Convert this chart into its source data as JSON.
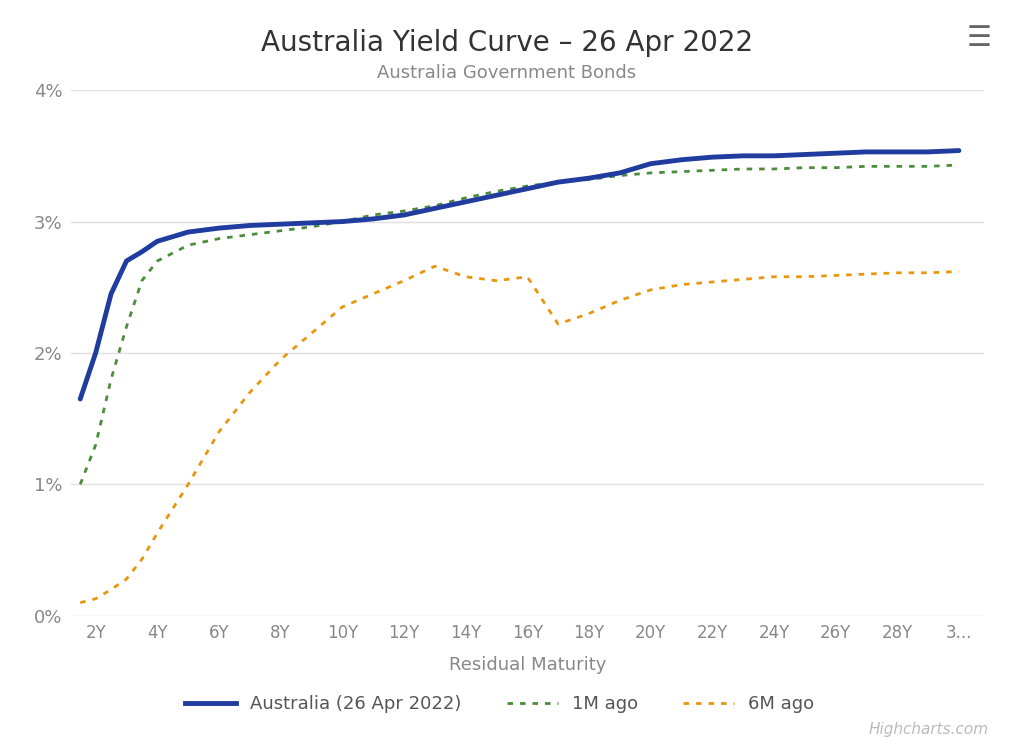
{
  "title": "Australia Yield Curve – 26 Apr 2022",
  "subtitle": "Australia Government Bonds",
  "xlabel": "Residual Maturity",
  "background_color": "#ffffff",
  "plot_bg_color": "#ffffff",
  "grid_color": "#e0e0e0",
  "title_color": "#333333",
  "subtitle_color": "#888888",
  "xlabel_color": "#888888",
  "x_ticks": [
    2,
    4,
    6,
    8,
    10,
    12,
    14,
    16,
    18,
    20,
    22,
    24,
    26,
    28,
    30
  ],
  "x_tick_labels": [
    "2Y",
    "4Y",
    "6Y",
    "8Y",
    "10Y",
    "12Y",
    "14Y",
    "16Y",
    "18Y",
    "20Y",
    "22Y",
    "24Y",
    "26Y",
    "28Y",
    "3..."
  ],
  "xlim": [
    1.2,
    30.8
  ],
  "ylim": [
    0.0,
    0.04
  ],
  "y_ticks": [
    0.0,
    0.01,
    0.02,
    0.03,
    0.04
  ],
  "y_tick_labels": [
    "0%",
    "1%",
    "2%",
    "3%",
    "4%"
  ],
  "series": {
    "today": {
      "label": "Australia (26 Apr 2022)",
      "color": "#1f3c9e",
      "linewidth": 3.5,
      "x": [
        1.5,
        2.0,
        2.5,
        3.0,
        3.5,
        4.0,
        5.0,
        6.0,
        7.0,
        8.0,
        9.0,
        10.0,
        11.0,
        12.0,
        13.0,
        14.0,
        15.0,
        16.0,
        17.0,
        18.0,
        19.0,
        20.0,
        21.0,
        22.0,
        23.0,
        24.0,
        25.0,
        26.0,
        27.0,
        28.0,
        29.0,
        30.0
      ],
      "y": [
        0.0165,
        0.02,
        0.0245,
        0.027,
        0.0277,
        0.0285,
        0.0292,
        0.0295,
        0.0297,
        0.0298,
        0.0299,
        0.03,
        0.0302,
        0.0305,
        0.031,
        0.0315,
        0.032,
        0.0325,
        0.033,
        0.0333,
        0.0337,
        0.0344,
        0.0347,
        0.0349,
        0.035,
        0.035,
        0.0351,
        0.0352,
        0.0353,
        0.0353,
        0.0353,
        0.0354
      ]
    },
    "1m_ago": {
      "label": "1M ago",
      "color": "#4c8c3c",
      "linewidth": 2.0,
      "x": [
        1.5,
        2.0,
        2.5,
        3.0,
        3.5,
        4.0,
        5.0,
        6.0,
        7.0,
        8.0,
        9.0,
        10.0,
        11.0,
        12.0,
        13.0,
        14.0,
        15.0,
        16.0,
        17.0,
        18.0,
        19.0,
        20.0,
        21.0,
        22.0,
        23.0,
        24.0,
        25.0,
        26.0,
        27.0,
        28.0,
        29.0,
        30.0
      ],
      "y": [
        0.01,
        0.013,
        0.018,
        0.022,
        0.0255,
        0.027,
        0.0282,
        0.0287,
        0.029,
        0.0293,
        0.0296,
        0.03,
        0.0305,
        0.0308,
        0.0312,
        0.0318,
        0.0323,
        0.0327,
        0.033,
        0.0332,
        0.0335,
        0.0337,
        0.0338,
        0.0339,
        0.034,
        0.034,
        0.0341,
        0.0341,
        0.0342,
        0.0342,
        0.0342,
        0.0343
      ]
    },
    "6m_ago": {
      "label": "6M ago",
      "color": "#e8960e",
      "linewidth": 2.0,
      "x": [
        1.5,
        2.0,
        2.5,
        3.0,
        3.5,
        4.0,
        5.0,
        6.0,
        7.0,
        8.0,
        9.0,
        10.0,
        11.0,
        12.0,
        13.0,
        14.0,
        15.0,
        16.0,
        17.0,
        18.0,
        19.0,
        20.0,
        21.0,
        22.0,
        23.0,
        24.0,
        25.0,
        26.0,
        27.0,
        28.0,
        29.0,
        30.0
      ],
      "y": [
        0.001,
        0.0013,
        0.002,
        0.0028,
        0.0043,
        0.0063,
        0.01,
        0.014,
        0.017,
        0.0195,
        0.0215,
        0.0235,
        0.0245,
        0.0255,
        0.0266,
        0.0258,
        0.0255,
        0.0258,
        0.0222,
        0.023,
        0.024,
        0.0248,
        0.0252,
        0.0254,
        0.0256,
        0.0258,
        0.0258,
        0.0259,
        0.026,
        0.0261,
        0.0261,
        0.0262
      ]
    }
  },
  "hamburger_icon": "☰",
  "watermark": "Highcharts.com"
}
